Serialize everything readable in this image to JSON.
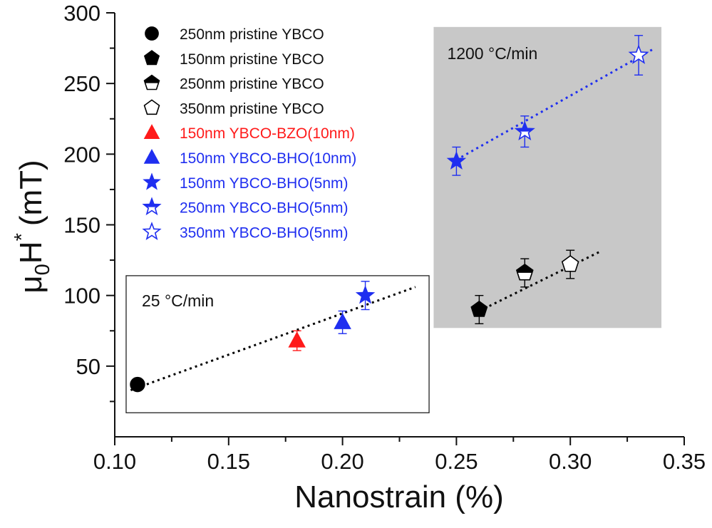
{
  "chart_data": {
    "type": "scatter",
    "xlabel": "Nanostrain (%)",
    "ylabel_base": "μ",
    "ylabel_sub": "0",
    "ylabel_main": "H",
    "ylabel_sup": "*",
    "ylabel_unit": "(mT)",
    "xlim": [
      0.1,
      0.35
    ],
    "ylim": [
      0,
      300
    ],
    "xticks": [
      "0.10",
      "0.15",
      "0.20",
      "0.25",
      "0.30",
      "0.35"
    ],
    "yticks": [
      "50",
      "100",
      "150",
      "200",
      "250",
      "300"
    ],
    "grid": false,
    "legend_position": "top-left",
    "series": [
      {
        "name": "250nm pristine YBCO",
        "marker": "circle",
        "fill": "solid",
        "color": "#000000",
        "text_color": "#111111",
        "points": [
          {
            "x": 0.11,
            "y": 37
          }
        ]
      },
      {
        "name": "150nm pristine YBCO",
        "marker": "pentagon",
        "fill": "solid",
        "color": "#000000",
        "text_color": "#111111",
        "points": [
          {
            "x": 0.26,
            "y": 90,
            "err": 10
          }
        ]
      },
      {
        "name": "250nm pristine YBCO",
        "marker": "pentagon",
        "fill": "half",
        "color": "#000000",
        "text_color": "#111111",
        "points": [
          {
            "x": 0.28,
            "y": 116,
            "err": 10
          }
        ]
      },
      {
        "name": "350nm pristine YBCO",
        "marker": "pentagon",
        "fill": "open",
        "color": "#000000",
        "text_color": "#111111",
        "points": [
          {
            "x": 0.3,
            "y": 122,
            "err": 10
          }
        ]
      },
      {
        "name": "150nm YBCO-BZO(10nm)",
        "marker": "triangle",
        "fill": "solid",
        "color": "#ff1a1a",
        "text_color": "#ff1a1a",
        "points": [
          {
            "x": 0.18,
            "y": 68,
            "err": 7
          }
        ]
      },
      {
        "name": "150nm YBCO-BHO(10nm)",
        "marker": "triangle",
        "fill": "solid",
        "color": "#1f2ef0",
        "text_color": "#1f2ef0",
        "points": [
          {
            "x": 0.2,
            "y": 81,
            "err": 8
          }
        ]
      },
      {
        "name": "150nm YBCO-BHO(5nm)",
        "marker": "star",
        "fill": "solid",
        "color": "#1f2ef0",
        "text_color": "#1f2ef0",
        "points": [
          {
            "x": 0.21,
            "y": 100,
            "err": 10
          },
          {
            "x": 0.25,
            "y": 195,
            "err": 10
          }
        ]
      },
      {
        "name": "250nm YBCO-BHO(5nm)",
        "marker": "star",
        "fill": "half",
        "color": "#1f2ef0",
        "text_color": "#1f2ef0",
        "points": [
          {
            "x": 0.28,
            "y": 216,
            "err": 11
          }
        ]
      },
      {
        "name": "350nm YBCO-BHO(5nm)",
        "marker": "star",
        "fill": "open",
        "color": "#1f2ef0",
        "text_color": "#1f2ef0",
        "points": [
          {
            "x": 0.33,
            "y": 270,
            "err": 14
          }
        ]
      }
    ],
    "fit_lines": [
      {
        "name": "fit-25",
        "color": "#000000",
        "x0": 0.107,
        "y0": 33,
        "x1": 0.232,
        "y1": 106
      },
      {
        "name": "fit-1200-blue",
        "color": "#1f2ef0",
        "x0": 0.25,
        "y0": 196,
        "x1": 0.336,
        "y1": 274
      },
      {
        "name": "fit-1200-black",
        "color": "#000000",
        "x0": 0.26,
        "y0": 89,
        "x1": 0.313,
        "y1": 131
      }
    ],
    "regions": [
      {
        "name": "region-25",
        "label": "25 °C/min",
        "fill": "none",
        "x0": 0.105,
        "x1": 0.238,
        "y0": 17,
        "y1": 114
      },
      {
        "name": "region-1200",
        "label": "1200 °C/min",
        "fill": "#c8c8c8",
        "x0": 0.24,
        "x1": 0.34,
        "y0": 77,
        "y1": 290
      }
    ]
  }
}
